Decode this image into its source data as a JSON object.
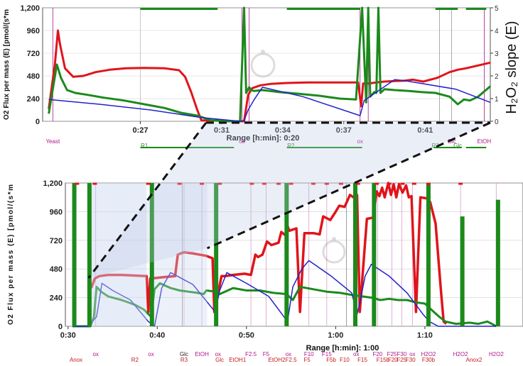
{
  "chart_data": [
    {
      "panel": "top",
      "type": "line",
      "ylabel": "O2 Flux per mass  (E) [pmol/(s*m",
      "y2label": "H₂O₂ slope (E)",
      "xlabel": "Range [h:min]: 0:20",
      "ylim": [
        0,
        1200
      ],
      "y2lim": [
        0,
        5
      ],
      "y_ticks": [
        "0",
        "240",
        "480",
        "720",
        "960",
        "1,200"
      ],
      "y2_ticks": [
        "0",
        "1",
        "2",
        "3",
        "4",
        "5"
      ],
      "x_ticks": [
        {
          "t": 27,
          "label": "0:27"
        },
        {
          "t": 31,
          "label": "0:31"
        },
        {
          "t": 34,
          "label": "0:34"
        },
        {
          "t": 37,
          "label": "0:37"
        },
        {
          "t": 41,
          "label": "0:41"
        }
      ],
      "xlim": [
        22.2,
        44.2
      ],
      "series": [
        {
          "color": "#e0141b",
          "width": 3,
          "x": [
            22.5,
            22.8,
            22.95,
            23.05,
            23.3,
            23.7,
            24.2,
            24.8,
            25.5,
            26.3,
            27.2,
            28.2,
            28.9,
            29.2,
            29.5,
            29.8,
            30.0,
            31.0,
            31.6,
            32.1,
            32.3,
            32.5,
            32.9,
            33.4,
            34.2,
            35.2,
            36.2,
            37.2,
            37.7,
            37.85,
            37.95,
            38.2,
            38.6,
            39.0,
            39.5,
            40.0,
            40.4,
            40.9,
            41.6,
            42.2,
            42.6,
            43.0,
            43.6,
            44.2
          ],
          "y": [
            130,
            600,
            960,
            820,
            560,
            470,
            480,
            520,
            545,
            560,
            565,
            560,
            540,
            470,
            310,
            120,
            10,
            10,
            0,
            0,
            280,
            350,
            380,
            395,
            405,
            410,
            410,
            410,
            410,
            160,
            400,
            400,
            410,
            420,
            425,
            430,
            440,
            420,
            460,
            520,
            545,
            560,
            590,
            620
          ]
        },
        {
          "color": "#1b8a1b",
          "width": 3,
          "x": [
            22.5,
            22.9,
            23.1,
            23.4,
            23.8,
            24.4,
            25.2,
            26.2,
            27.2,
            28.2,
            29.0,
            29.8,
            30.5,
            31.3,
            31.9,
            32.1,
            32.2,
            32.35,
            32.45,
            32.6,
            33.0,
            33.8,
            34.8,
            35.8,
            36.8,
            37.6,
            37.9,
            38.1,
            38.2,
            38.3,
            38.5,
            38.6,
            38.7,
            38.8,
            39.0,
            39.5,
            40.2,
            40.8,
            41.5,
            42.2,
            42.6,
            42.9,
            43.2,
            43.6,
            44.2
          ],
          "y": [
            80,
            600,
            460,
            330,
            300,
            280,
            250,
            220,
            180,
            140,
            90,
            60,
            10,
            0,
            0,
            1200,
            300,
            360,
            330,
            320,
            330,
            310,
            290,
            270,
            240,
            230,
            1200,
            200,
            1200,
            260,
            310,
            300,
            1200,
            300,
            340,
            330,
            320,
            310,
            300,
            260,
            180,
            230,
            220,
            260,
            370
          ]
        },
        {
          "color": "#2222c8",
          "width": 1.5,
          "x": [
            22.5,
            25.0,
            27.5,
            30.0,
            31.9,
            32.1,
            32.3,
            32.6,
            33.0,
            35.0,
            37.8,
            38.0,
            39.5,
            40.0,
            42.5,
            44.2
          ],
          "y": [
            230,
            180,
            120,
            40,
            0,
            10,
            120,
            230,
            360,
            260,
            60,
            220,
            440,
            430,
            340,
            200
          ]
        }
      ]
    },
    {
      "panel": "bottom",
      "type": "line",
      "ylabel": "O2 Flux per mass  (E) [pmol/(s*m",
      "xlabel": "Range [h:min]: 1:00",
      "ylim": [
        0,
        1200
      ],
      "y_ticks": [
        "0",
        "240",
        "480",
        "720",
        "960",
        "1,200"
      ],
      "x_ticks": [
        {
          "t": 30,
          "label": "0:30"
        },
        {
          "t": 40,
          "label": "0:40"
        },
        {
          "t": 50,
          "label": "0:50"
        },
        {
          "t": 60,
          "label": "1:00"
        },
        {
          "t": 70,
          "label": "1:10"
        }
      ],
      "xlim": [
        29.7,
        81.0
      ],
      "series": [
        {
          "color": "#e0141b",
          "width": 3.5,
          "x": [
            32.6,
            33.0,
            33.5,
            34.5,
            36.0,
            37.5,
            38.8,
            39.0,
            39.2,
            40.5,
            42.0,
            42.3,
            43.0,
            44.0,
            45.5,
            46.2,
            46.4,
            47.2,
            47.6,
            48.5,
            49.8,
            50.5,
            51.0,
            51.3,
            51.8,
            52.3,
            52.8,
            53.6,
            53.9,
            54.4,
            54.6,
            54.8,
            55.6,
            56.0,
            56.5,
            57.5,
            58.2,
            58.6,
            59.4,
            60.0,
            60.4,
            61.0,
            61.6,
            62.2,
            62.4,
            62.7,
            63.5,
            64.2,
            64.6,
            64.9,
            65.2,
            65.5,
            65.9,
            66.2,
            66.5,
            66.8,
            67.1,
            67.5,
            67.9,
            68.2,
            68.5,
            69.0,
            69.5,
            70.3,
            70.6,
            71.2,
            71.8,
            72.1,
            72.4
          ],
          "y": [
            320,
            400,
            420,
            430,
            430,
            425,
            420,
            120,
            400,
            410,
            420,
            600,
            620,
            610,
            590,
            570,
            120,
            420,
            420,
            430,
            440,
            430,
            600,
            580,
            600,
            710,
            680,
            700,
            790,
            760,
            840,
            800,
            820,
            120,
            780,
            780,
            770,
            920,
            890,
            960,
            1010,
            1000,
            1100,
            1070,
            1100,
            120,
            900,
            910,
            1130,
            1090,
            1160,
            1080,
            1200,
            1100,
            1190,
            1080,
            1190,
            1120,
            1180,
            1080,
            1090,
            120,
            1080,
            1070,
            1040,
            860,
            300,
            40,
            20
          ]
        },
        {
          "color": "#1b8a1b",
          "width": 3,
          "x": [
            30.5,
            32.0,
            32.5,
            32.9,
            33.2,
            33.7,
            34.5,
            36.0,
            37.5,
            38.5,
            39.3,
            39.7,
            40.3,
            41.5,
            42.5,
            43.5,
            44.5,
            45.2,
            45.5,
            46.5,
            47.0,
            48.5,
            50.0,
            51.5,
            53.0,
            54.5,
            55.2,
            56.0,
            57.5,
            59.0,
            60.5,
            62.0,
            63.0,
            64.0,
            65.0,
            66.0,
            67.0,
            68.0,
            69.0,
            70.0,
            71.0,
            71.6,
            72.3,
            73.5,
            75.0,
            76.0,
            77.0,
            77.5,
            78.0
          ],
          "y": [
            0,
            0,
            0,
            80,
            330,
            290,
            250,
            220,
            180,
            140,
            80,
            310,
            360,
            320,
            300,
            290,
            280,
            270,
            300,
            290,
            270,
            320,
            300,
            300,
            280,
            270,
            220,
            330,
            310,
            290,
            280,
            260,
            250,
            240,
            220,
            230,
            220,
            220,
            200,
            190,
            120,
            80,
            40,
            20,
            30,
            20,
            40,
            20,
            0
          ]
        },
        {
          "color": "#2222c8",
          "width": 1.5,
          "x": [
            30.5,
            32.3,
            33.2,
            33.8,
            35.0,
            37.0,
            39.0,
            39.7,
            40.5,
            41.5,
            44.0,
            46.5,
            47.0,
            47.8,
            50.0,
            52.5,
            54.6,
            55.2,
            56.2,
            57.0,
            59.5,
            61.8,
            62.4,
            62.8,
            63.3,
            64.0,
            66.0,
            68.0,
            69.8,
            70.5,
            71.5,
            73.0,
            75.0,
            78.0
          ],
          "y": [
            0,
            0,
            80,
            360,
            300,
            220,
            40,
            0,
            320,
            450,
            350,
            120,
            300,
            450,
            360,
            250,
            40,
            330,
            480,
            550,
            420,
            280,
            100,
            230,
            420,
            520,
            420,
            280,
            100,
            40,
            0,
            0,
            0,
            0
          ]
        }
      ]
    }
  ],
  "events_top_pink": [
    "Yeast",
    "ox",
    "ox",
    "Glc",
    "EtOH"
  ],
  "events_top_green": [
    "R1",
    "R2",
    "R3",
    "Glc"
  ],
  "events_bottom_pink_row1": [
    "ox",
    "ox",
    "Glc",
    "EtOH",
    "ox",
    "F2.5",
    "F5",
    "ox",
    "F10",
    "F15",
    "ox",
    "F20",
    "F25",
    "F30",
    "ox",
    "H2O2",
    "H2O2",
    "H2O2"
  ],
  "events_bottom_pink_row2": [
    "Anox",
    "R2",
    "R3",
    "Glc",
    "EtOH1",
    "EtOH2",
    "F2.5",
    "F5",
    "F5b",
    "F10",
    "F15",
    "F15b",
    "F20",
    "F25",
    "F30",
    "F30b",
    "Anox2"
  ],
  "top_xlabel_text": "Range [h:min]: 0:20",
  "bottom_xlabel_text": "Range [h:min]: 1:00"
}
